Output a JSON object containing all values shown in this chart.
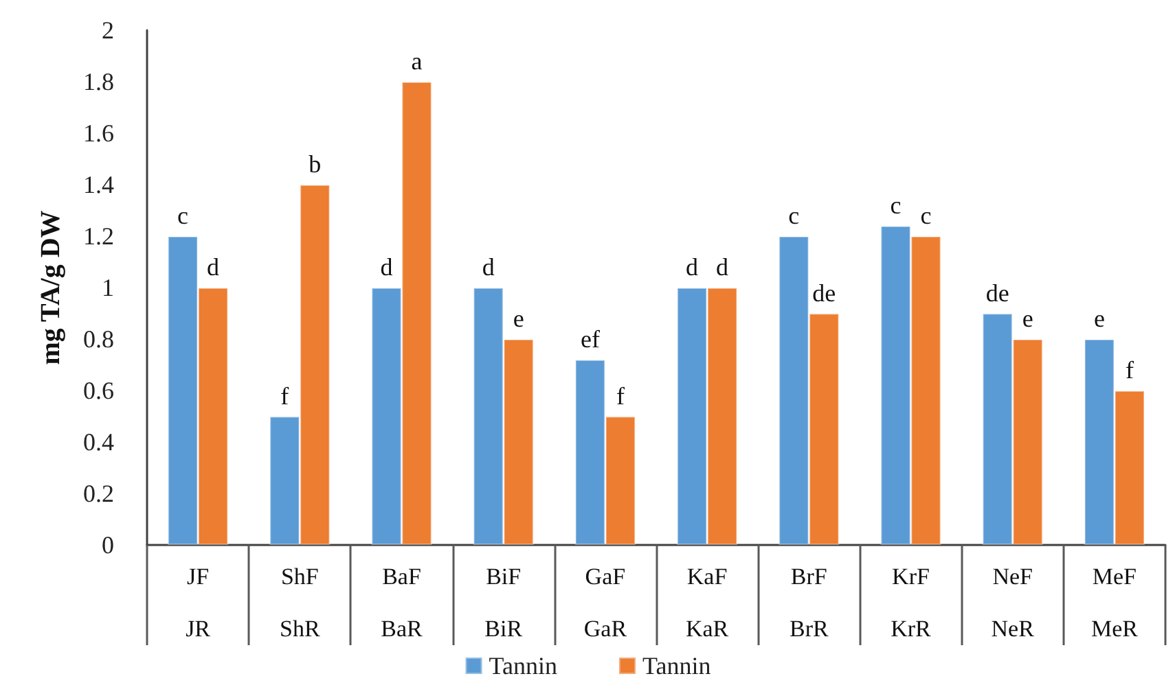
{
  "chart_data": {
    "type": "bar",
    "ylabel": "mg TA/g DW",
    "categories": [
      "JF\nJR",
      "ShF\nShR",
      "BaF\nBaR",
      "BiF\nBiR",
      "GaF\nGaR",
      "KaF\nKaR",
      "BrF\nBrR",
      "KrF\nKrR",
      "NeF\nNeR",
      "MeF\nMeR"
    ],
    "series": [
      {
        "name": "Tannin",
        "color": "#5b9bd5",
        "values": [
          1.2,
          0.5,
          1.0,
          1.0,
          0.72,
          1.0,
          1.2,
          1.24,
          0.9,
          0.8
        ],
        "value_labels": [
          "c",
          "f",
          "d",
          "d",
          "ef",
          "d",
          "c",
          "c",
          "de",
          "e"
        ]
      },
      {
        "name": "Tannin",
        "color": "#ed7d31",
        "values": [
          1.0,
          1.4,
          1.8,
          0.8,
          0.5,
          1.0,
          0.9,
          1.2,
          0.8,
          0.6
        ],
        "value_labels": [
          "d",
          "b",
          "a",
          "e",
          "f",
          "d",
          "de",
          "c",
          "e",
          "f"
        ]
      }
    ],
    "ylim": [
      0,
      2
    ],
    "yticks": [
      0,
      0.2,
      0.4,
      0.6,
      0.8,
      1,
      1.2,
      1.4,
      1.6,
      1.8,
      2
    ],
    "legend": "bottom"
  }
}
